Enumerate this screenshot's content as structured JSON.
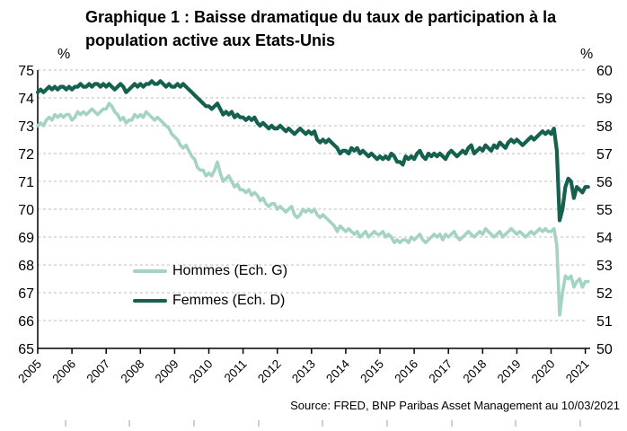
{
  "title": {
    "line1": "Graphique 1 : Baisse dramatique du taux de participation à la",
    "line2": "population active aux Etats-Unis"
  },
  "source": "Source: FRED, BNP Paribas Asset Management au 10/03/2021",
  "chart_data": {
    "type": "line",
    "grid": "horizontal-dashed",
    "legend_position": "inside-middle-left",
    "x_tick_labels": [
      "2005",
      "2006",
      "2007",
      "2008",
      "2009",
      "2010",
      "2011",
      "2012",
      "2013",
      "2014",
      "2015",
      "2016",
      "2017",
      "2018",
      "2019",
      "2020",
      "2021"
    ],
    "left_axis": {
      "unit_label": "%",
      "min": 65,
      "max": 75,
      "ticks": [
        75,
        74,
        73,
        72,
        71,
        70,
        69,
        68,
        67,
        66,
        65
      ]
    },
    "right_axis": {
      "unit_label": "%",
      "min": 50,
      "max": 60,
      "ticks": [
        60,
        59,
        58,
        57,
        56,
        55,
        54,
        53,
        52,
        51,
        50
      ]
    },
    "start": "2005-01",
    "end": "2021-02",
    "series": [
      {
        "name": "Hommes (Ech. G)",
        "axis": "left",
        "color": "#a5d3c3",
        "stroke_width": 3.6,
        "monthly_values": [
          73.0,
          73.1,
          73.0,
          73.2,
          73.3,
          73.2,
          73.4,
          73.3,
          73.4,
          73.3,
          73.4,
          73.4,
          73.2,
          73.3,
          73.5,
          73.4,
          73.5,
          73.4,
          73.5,
          73.6,
          73.5,
          73.4,
          73.5,
          73.6,
          73.6,
          73.8,
          73.7,
          73.5,
          73.4,
          73.2,
          73.3,
          73.1,
          73.2,
          73.2,
          73.4,
          73.3,
          73.4,
          73.3,
          73.5,
          73.4,
          73.3,
          73.2,
          73.3,
          73.2,
          73.1,
          73.0,
          72.9,
          72.7,
          72.6,
          72.5,
          72.3,
          72.2,
          72.3,
          72.1,
          71.9,
          71.8,
          71.5,
          71.4,
          71.4,
          71.2,
          71.3,
          71.2,
          71.4,
          71.7,
          71.3,
          71.0,
          71.1,
          71.2,
          71.0,
          70.8,
          70.9,
          70.7,
          70.7,
          70.6,
          70.7,
          70.5,
          70.6,
          70.5,
          70.3,
          70.4,
          70.2,
          70.1,
          70.2,
          70.2,
          70.0,
          70.1,
          70.0,
          69.9,
          70.0,
          70.1,
          69.8,
          69.7,
          69.8,
          70.0,
          69.9,
          70.0,
          69.9,
          70.0,
          69.8,
          69.7,
          69.8,
          69.7,
          69.6,
          69.5,
          69.4,
          69.2,
          69.4,
          69.3,
          69.2,
          69.3,
          69.2,
          69.1,
          69.2,
          69.0,
          69.1,
          69.2,
          69.0,
          69.1,
          69.2,
          69.1,
          69.1,
          69.2,
          69.0,
          69.1,
          69.0,
          68.8,
          68.9,
          68.8,
          68.9,
          68.9,
          68.8,
          69.0,
          68.9,
          69.0,
          69.1,
          68.9,
          68.8,
          68.9,
          69.0,
          69.1,
          69.0,
          69.1,
          68.9,
          69.1,
          69.0,
          69.1,
          69.2,
          69.0,
          68.9,
          69.0,
          69.1,
          69.2,
          69.1,
          69.0,
          69.1,
          69.2,
          69.1,
          69.3,
          69.2,
          69.1,
          69.0,
          69.1,
          69.2,
          69.0,
          69.1,
          69.2,
          69.3,
          69.2,
          69.1,
          69.2,
          69.1,
          69.0,
          69.1,
          69.2,
          69.1,
          69.2,
          69.3,
          69.2,
          69.3,
          69.2,
          69.2,
          69.3,
          68.7,
          66.2,
          67.0,
          67.6,
          67.5,
          67.6,
          67.2,
          67.4,
          67.5,
          67.2,
          67.4,
          67.4
        ]
      },
      {
        "name": "Femmes (Ech. D)",
        "axis": "right",
        "color": "#16604e",
        "stroke_width": 4.2,
        "monthly_values": [
          59.2,
          59.3,
          59.2,
          59.3,
          59.4,
          59.3,
          59.4,
          59.3,
          59.4,
          59.4,
          59.3,
          59.4,
          59.3,
          59.4,
          59.4,
          59.5,
          59.4,
          59.4,
          59.5,
          59.4,
          59.5,
          59.5,
          59.4,
          59.5,
          59.4,
          59.5,
          59.4,
          59.3,
          59.4,
          59.5,
          59.4,
          59.2,
          59.3,
          59.4,
          59.5,
          59.4,
          59.5,
          59.4,
          59.5,
          59.5,
          59.6,
          59.5,
          59.5,
          59.6,
          59.5,
          59.4,
          59.5,
          59.4,
          59.4,
          59.5,
          59.4,
          59.5,
          59.4,
          59.3,
          59.2,
          59.1,
          59.0,
          58.9,
          58.8,
          58.7,
          58.7,
          58.6,
          58.7,
          58.8,
          58.6,
          58.4,
          58.5,
          58.4,
          58.5,
          58.3,
          58.4,
          58.3,
          58.3,
          58.2,
          58.3,
          58.2,
          58.3,
          58.1,
          58.0,
          58.1,
          58.0,
          57.9,
          58.0,
          57.9,
          57.9,
          58.0,
          57.9,
          57.8,
          57.9,
          57.8,
          57.7,
          57.8,
          57.9,
          57.8,
          57.7,
          57.8,
          57.7,
          57.8,
          57.5,
          57.4,
          57.5,
          57.4,
          57.5,
          57.4,
          57.3,
          57.2,
          57.0,
          57.1,
          57.1,
          57.0,
          57.2,
          57.1,
          57.2,
          57.0,
          57.1,
          57.0,
          56.9,
          57.0,
          56.9,
          56.8,
          56.9,
          56.8,
          56.9,
          56.8,
          57.0,
          56.9,
          56.7,
          56.7,
          56.6,
          56.9,
          56.8,
          56.9,
          56.8,
          57.0,
          57.1,
          56.9,
          56.8,
          57.0,
          56.9,
          57.0,
          56.9,
          57.0,
          56.9,
          56.8,
          57.0,
          57.1,
          57.0,
          56.9,
          57.0,
          57.1,
          57.0,
          57.2,
          57.3,
          57.0,
          57.1,
          57.2,
          57.1,
          57.3,
          57.2,
          57.1,
          57.3,
          57.2,
          57.4,
          57.3,
          57.2,
          57.4,
          57.5,
          57.4,
          57.5,
          57.4,
          57.3,
          57.4,
          57.5,
          57.6,
          57.5,
          57.6,
          57.7,
          57.8,
          57.7,
          57.8,
          57.7,
          57.9,
          57.1,
          54.6,
          55.0,
          55.8,
          56.1,
          56.0,
          55.4,
          55.8,
          55.7,
          55.6,
          55.8,
          55.8
        ]
      }
    ]
  }
}
